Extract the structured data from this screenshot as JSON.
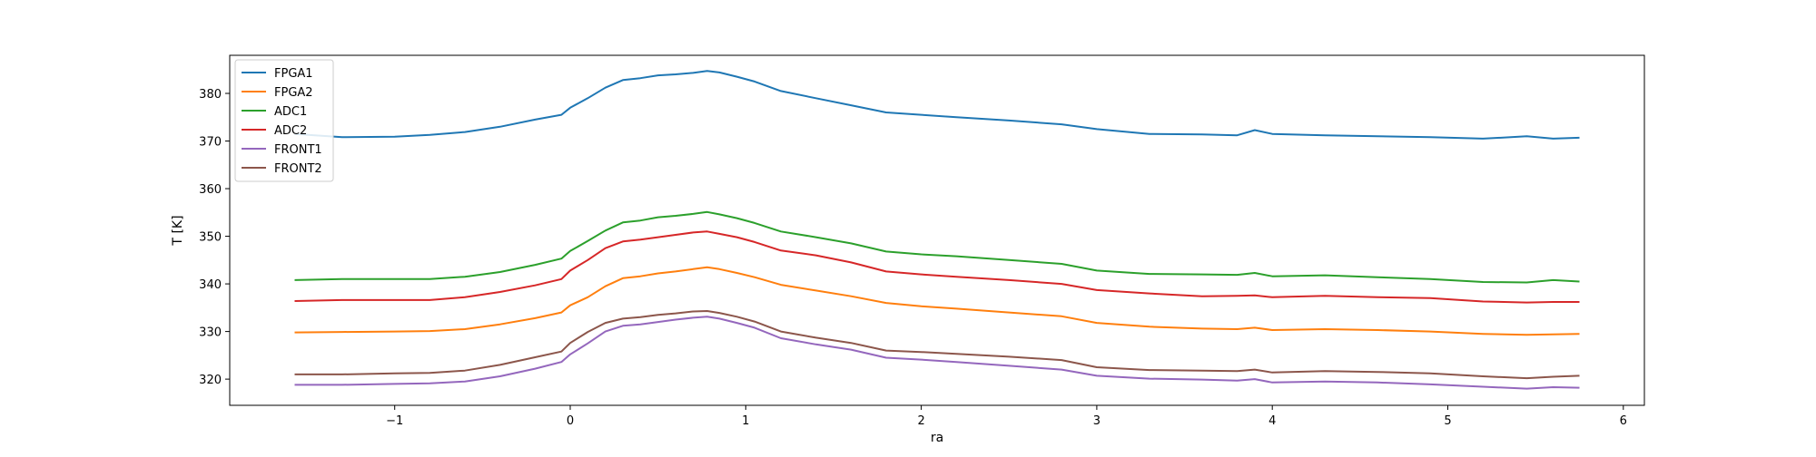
{
  "chart_data": {
    "type": "line",
    "title": "",
    "xlabel": "ra",
    "ylabel": "T [K]",
    "xlim": [
      -1.94,
      6.12
    ],
    "ylim": [
      314.5,
      388.0
    ],
    "xticks": [
      -1,
      0,
      1,
      2,
      3,
      4,
      5,
      6
    ],
    "xtick_labels": [
      "−1",
      "0",
      "1",
      "2",
      "3",
      "4",
      "5",
      "6"
    ],
    "yticks": [
      320,
      330,
      340,
      350,
      360,
      370,
      380
    ],
    "ytick_labels": [
      "320",
      "330",
      "340",
      "350",
      "360",
      "370",
      "380"
    ],
    "grid": false,
    "legend_position": "top-left",
    "x": [
      -1.57,
      -1.3,
      -1.0,
      -0.8,
      -0.6,
      -0.4,
      -0.2,
      -0.05,
      0.0,
      0.1,
      0.2,
      0.3,
      0.4,
      0.5,
      0.6,
      0.7,
      0.78,
      0.85,
      0.95,
      1.05,
      1.2,
      1.4,
      1.6,
      1.8,
      2.0,
      2.2,
      2.5,
      2.8,
      3.0,
      3.3,
      3.6,
      3.8,
      3.9,
      4.0,
      4.3,
      4.6,
      4.9,
      5.2,
      5.45,
      5.6,
      5.75
    ],
    "series": [
      {
        "name": "FPGA1",
        "color": "#1f77b4",
        "values": [
          371.5,
          370.8,
          370.9,
          371.3,
          371.9,
          373.0,
          374.5,
          375.5,
          377.0,
          379.0,
          381.2,
          382.8,
          383.2,
          383.8,
          384.0,
          384.3,
          384.7,
          384.4,
          383.5,
          382.5,
          380.5,
          379.0,
          377.5,
          376.0,
          375.5,
          375.0,
          374.3,
          373.5,
          372.5,
          371.5,
          371.4,
          371.2,
          372.3,
          371.5,
          371.2,
          371.0,
          370.8,
          370.5,
          371.0,
          370.5,
          370.7
        ]
      },
      {
        "name": "FPGA2",
        "color": "#ff7f0e",
        "values": [
          329.8,
          329.9,
          330.0,
          330.1,
          330.5,
          331.5,
          332.8,
          334.0,
          335.5,
          337.2,
          339.5,
          341.2,
          341.6,
          342.2,
          342.6,
          343.1,
          343.5,
          343.1,
          342.3,
          341.4,
          339.8,
          338.6,
          337.4,
          336.0,
          335.3,
          334.8,
          334.0,
          333.2,
          331.8,
          331.0,
          330.6,
          330.5,
          330.8,
          330.3,
          330.5,
          330.3,
          330.0,
          329.5,
          329.3,
          329.4,
          329.5
        ]
      },
      {
        "name": "ADC1",
        "color": "#2ca02c",
        "values": [
          340.8,
          341.0,
          341.0,
          341.0,
          341.5,
          342.5,
          344.0,
          345.3,
          346.9,
          349.0,
          351.2,
          352.9,
          353.3,
          354.0,
          354.3,
          354.7,
          355.1,
          354.6,
          353.8,
          352.8,
          351.0,
          349.8,
          348.5,
          346.8,
          346.2,
          345.8,
          345.0,
          344.2,
          342.8,
          342.1,
          342.0,
          341.9,
          342.3,
          341.6,
          341.8,
          341.4,
          341.0,
          340.4,
          340.3,
          340.8,
          340.5
        ]
      },
      {
        "name": "ADC2",
        "color": "#d62728",
        "values": [
          336.4,
          336.6,
          336.6,
          336.6,
          337.2,
          338.3,
          339.7,
          341.0,
          342.8,
          345.0,
          347.5,
          348.9,
          349.3,
          349.8,
          350.3,
          350.8,
          351.0,
          350.5,
          349.8,
          348.8,
          347.0,
          346.0,
          344.5,
          342.6,
          342.0,
          341.5,
          340.8,
          340.0,
          338.7,
          338.0,
          337.4,
          337.5,
          337.6,
          337.2,
          337.5,
          337.2,
          337.0,
          336.3,
          336.1,
          336.2,
          336.2
        ]
      },
      {
        "name": "FRONT1",
        "color": "#9467bd",
        "values": [
          318.8,
          318.8,
          319.0,
          319.1,
          319.5,
          320.6,
          322.2,
          323.6,
          325.2,
          327.5,
          330.0,
          331.2,
          331.5,
          332.0,
          332.5,
          332.9,
          333.1,
          332.7,
          331.8,
          330.8,
          328.6,
          327.3,
          326.2,
          324.5,
          324.1,
          323.6,
          322.8,
          322.0,
          320.7,
          320.1,
          319.9,
          319.7,
          320.0,
          319.3,
          319.5,
          319.3,
          318.9,
          318.4,
          318.0,
          318.3,
          318.2
        ]
      },
      {
        "name": "FRONT2",
        "color": "#8c564b",
        "values": [
          321.0,
          321.0,
          321.2,
          321.3,
          321.8,
          323.0,
          324.6,
          325.8,
          327.6,
          329.9,
          331.8,
          332.7,
          333.0,
          333.5,
          333.8,
          334.2,
          334.3,
          333.9,
          333.1,
          332.1,
          330.0,
          328.7,
          327.6,
          326.0,
          325.7,
          325.3,
          324.7,
          324.0,
          322.5,
          321.9,
          321.8,
          321.7,
          322.0,
          321.4,
          321.7,
          321.5,
          321.2,
          320.6,
          320.2,
          320.5,
          320.7
        ]
      }
    ]
  }
}
